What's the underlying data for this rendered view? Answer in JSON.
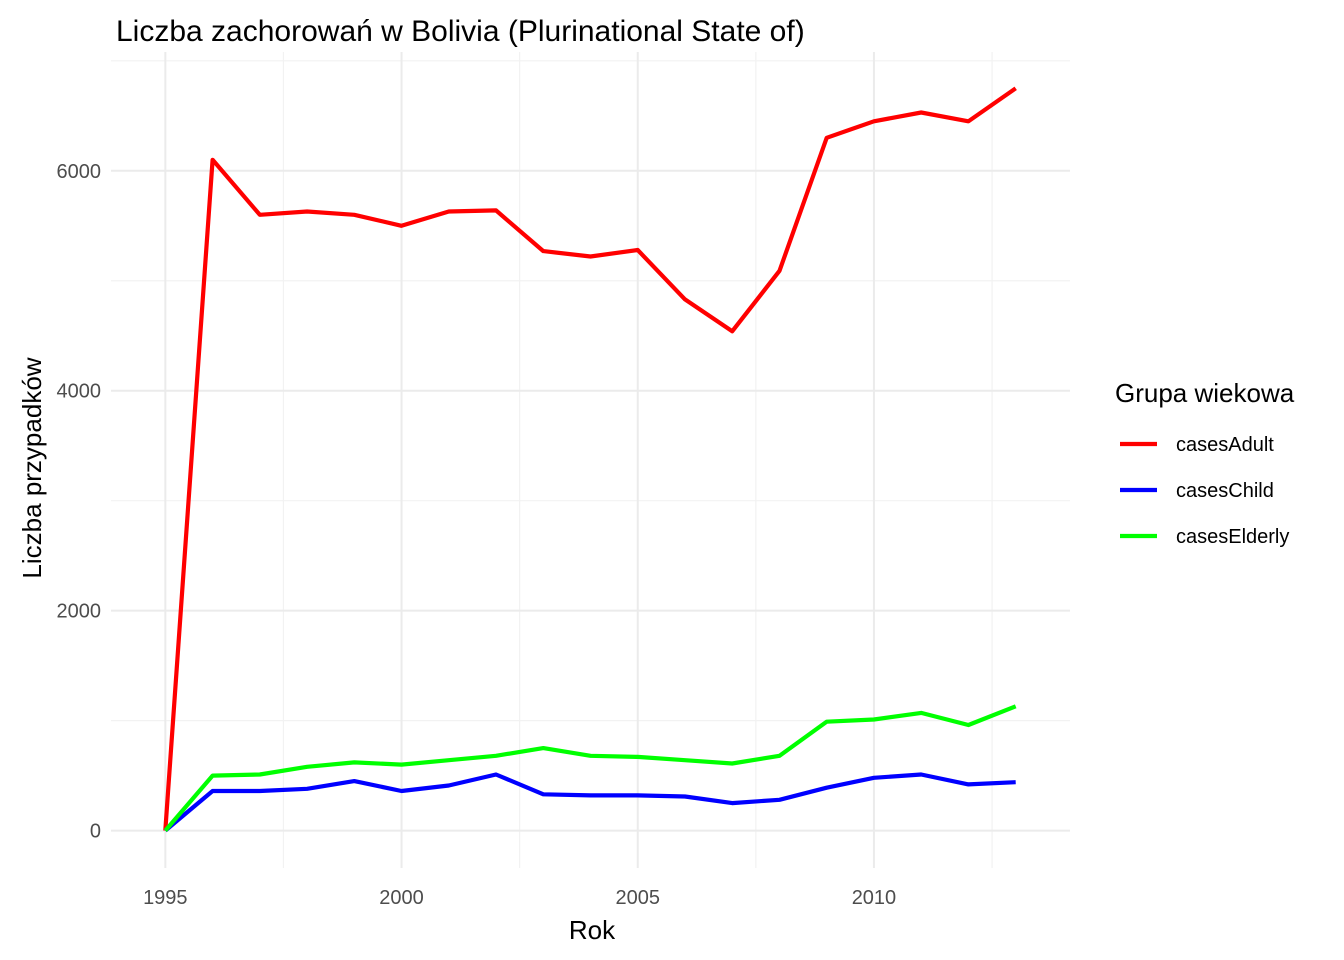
{
  "chart_data": {
    "type": "line",
    "title": "Liczba zachorowań w Bolivia (Plurinational State of)",
    "xlabel": "Rok",
    "ylabel": "Liczba przypadków",
    "x": [
      1995,
      1996,
      1997,
      1998,
      1999,
      2000,
      2001,
      2002,
      2003,
      2004,
      2005,
      2006,
      2007,
      2008,
      2009,
      2010,
      2011,
      2012,
      2013
    ],
    "xlim": [
      1993.85,
      2014.15
    ],
    "ylim": [
      -340,
      7080
    ],
    "x_ticks": [
      1995,
      2000,
      2005,
      2010
    ],
    "x_tick_labels": [
      "1995",
      "2000",
      "2005",
      "2010"
    ],
    "y_ticks": [
      0,
      2000,
      4000,
      6000
    ],
    "y_tick_labels": [
      "0",
      "2000",
      "4000",
      "6000"
    ],
    "x_minor_ticks": [
      1997.5,
      2002.5,
      2007.5,
      2012.5
    ],
    "y_minor_ticks": [
      1000,
      3000,
      5000,
      7000
    ],
    "grid": true,
    "legend": {
      "title": "Grupa wiekowa",
      "position": "right"
    },
    "series": [
      {
        "name": "casesAdult",
        "color": "#ff0000",
        "values": [
          0,
          6100,
          5600,
          5630,
          5600,
          5500,
          5630,
          5640,
          5270,
          5220,
          5280,
          4830,
          4540,
          5090,
          6300,
          6450,
          6530,
          6450,
          6750
        ]
      },
      {
        "name": "casesChild",
        "color": "#0000ff",
        "values": [
          0,
          360,
          360,
          380,
          450,
          360,
          410,
          510,
          330,
          320,
          320,
          310,
          250,
          280,
          390,
          480,
          510,
          420,
          440
        ]
      },
      {
        "name": "casesElderly",
        "color": "#00ff00",
        "values": [
          0,
          500,
          510,
          580,
          620,
          600,
          640,
          680,
          750,
          680,
          670,
          640,
          610,
          680,
          990,
          1010,
          1070,
          960,
          1130
        ]
      }
    ]
  }
}
